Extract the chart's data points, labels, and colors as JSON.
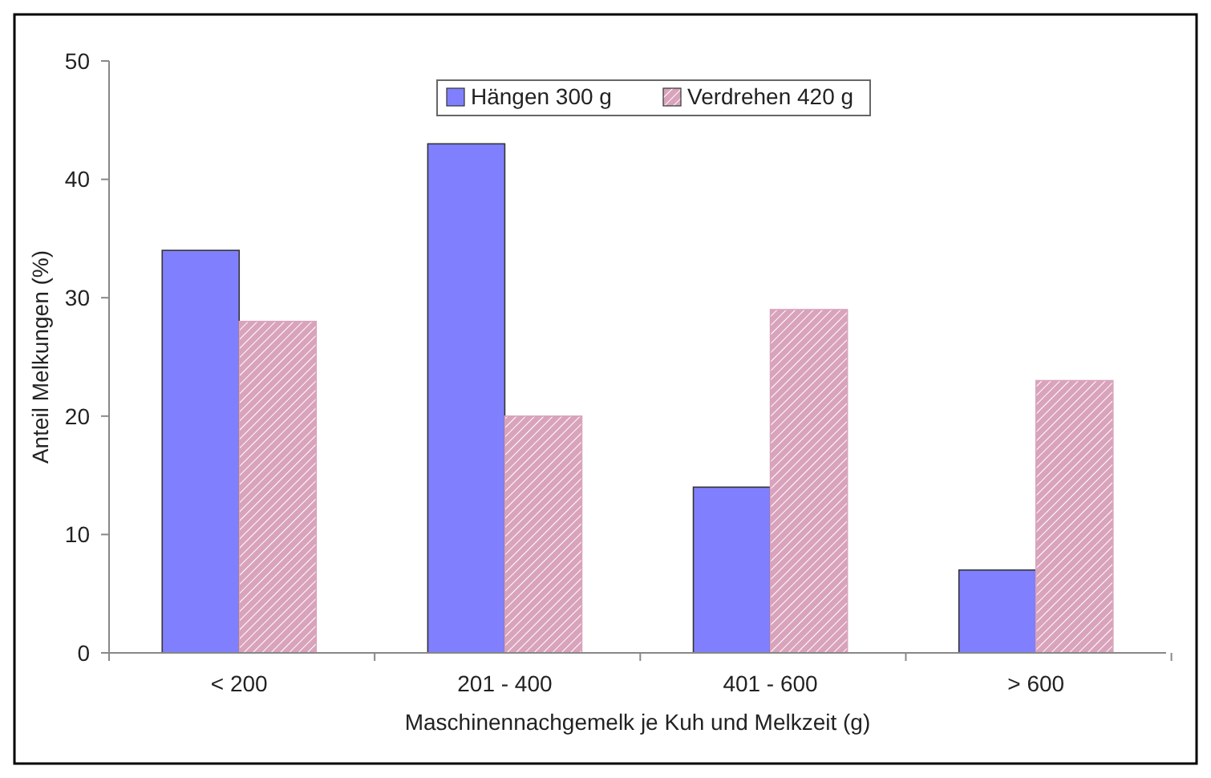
{
  "chart_data": {
    "type": "bar",
    "xlabel": "Maschinennachgemelk je Kuh und Melkzeit (g)",
    "ylabel": "Anteil Melkungen (%)",
    "categories": [
      "< 200",
      "201 - 400",
      "401 - 600",
      "> 600"
    ],
    "series": [
      {
        "name": "Hängen 300 g",
        "color": "#8080ff",
        "values": [
          34,
          43,
          14,
          7
        ]
      },
      {
        "name": "Verdrehen 420 g",
        "color": "#d9a3bc",
        "values": [
          28,
          20,
          29,
          23
        ]
      }
    ],
    "ylim": [
      0,
      50
    ],
    "yticks": [
      0,
      10,
      20,
      30,
      40,
      50
    ],
    "grid": false,
    "legend": "top"
  }
}
